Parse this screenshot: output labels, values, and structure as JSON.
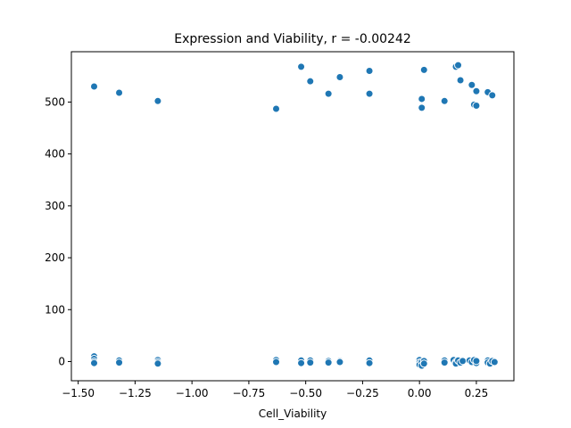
{
  "chart_data": {
    "type": "scatter",
    "title": "Expression and Viability, r = -0.00242",
    "xlabel": "Cell_Viability",
    "ylabel": "",
    "xlim": [
      -1.53,
      0.415
    ],
    "ylim": [
      -37,
      597
    ],
    "xticks": [
      -1.5,
      -1.25,
      -1.0,
      -0.75,
      -0.5,
      -0.25,
      0.0,
      0.25
    ],
    "xtick_labels": [
      "−1.50",
      "−1.25",
      "−1.00",
      "−0.75",
      "−0.50",
      "−0.25",
      "0.00",
      "0.25"
    ],
    "yticks": [
      0,
      100,
      200,
      300,
      400,
      500
    ],
    "ytick_labels": [
      "0",
      "100",
      "200",
      "300",
      "400",
      "500"
    ],
    "grid": false,
    "marker_color": "#1f77b4",
    "series": [
      {
        "points": [
          [
            -1.43,
            530
          ],
          [
            -1.32,
            518
          ],
          [
            -1.15,
            502
          ],
          [
            -0.63,
            487
          ],
          [
            -0.52,
            568
          ],
          [
            -0.48,
            540
          ],
          [
            -0.4,
            516
          ],
          [
            -0.35,
            548
          ],
          [
            -0.22,
            560
          ],
          [
            -0.22,
            516
          ],
          [
            0.01,
            506
          ],
          [
            0.01,
            489
          ],
          [
            0.02,
            562
          ],
          [
            0.11,
            502
          ],
          [
            0.16,
            568
          ],
          [
            0.17,
            571
          ],
          [
            0.18,
            542
          ],
          [
            0.23,
            533
          ],
          [
            0.24,
            495
          ],
          [
            0.25,
            493
          ],
          [
            0.25,
            521
          ],
          [
            0.3,
            519
          ],
          [
            0.32,
            513
          ],
          [
            -1.43,
            10
          ],
          [
            -1.43,
            5
          ],
          [
            -1.43,
            0
          ],
          [
            -1.43,
            -3
          ],
          [
            -1.32,
            2
          ],
          [
            -1.32,
            -2
          ],
          [
            -1.15,
            3
          ],
          [
            -1.15,
            -1
          ],
          [
            -1.15,
            -4
          ],
          [
            -0.63,
            3
          ],
          [
            -0.63,
            -1
          ],
          [
            -0.52,
            2
          ],
          [
            -0.52,
            -3
          ],
          [
            -0.48,
            2
          ],
          [
            -0.48,
            -2
          ],
          [
            -0.4,
            1
          ],
          [
            -0.4,
            -2
          ],
          [
            -0.35,
            1
          ],
          [
            -0.35,
            -1
          ],
          [
            -0.22,
            2
          ],
          [
            -0.22,
            -3
          ],
          [
            0.0,
            3
          ],
          [
            0.0,
            -2
          ],
          [
            0.0,
            -6
          ],
          [
            0.01,
            -1
          ],
          [
            0.01,
            -8
          ],
          [
            0.02,
            1
          ],
          [
            0.02,
            -4
          ],
          [
            0.11,
            2
          ],
          [
            0.11,
            -2
          ],
          [
            0.15,
            3
          ],
          [
            0.16,
            -1
          ],
          [
            0.16,
            -4
          ],
          [
            0.17,
            2
          ],
          [
            0.18,
            -2
          ],
          [
            0.19,
            1
          ],
          [
            0.22,
            2
          ],
          [
            0.23,
            -1
          ],
          [
            0.24,
            3
          ],
          [
            0.25,
            -3
          ],
          [
            0.25,
            1
          ],
          [
            0.3,
            2
          ],
          [
            0.3,
            -2
          ],
          [
            0.31,
            -4
          ],
          [
            0.32,
            1
          ],
          [
            0.33,
            -1
          ]
        ]
      }
    ]
  }
}
